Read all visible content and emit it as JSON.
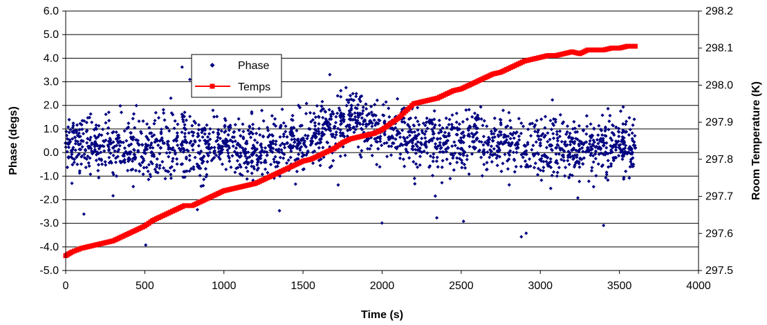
{
  "chart_data": {
    "type": "scatter",
    "title": "",
    "xlabel": "Time (s)",
    "ylabel_left": "Phase (degs)",
    "ylabel_right": "Room Temperature (K)",
    "xlim": [
      0,
      4000
    ],
    "ylim_left": [
      -5,
      6
    ],
    "ylim_right": [
      297.5,
      298.2
    ],
    "x_ticks": [
      "0",
      "500",
      "1000",
      "1500",
      "2000",
      "2500",
      "3000",
      "3500",
      "4000"
    ],
    "y_left_ticks": [
      "-5.0",
      "-4.0",
      "-3.0",
      "-2.0",
      "-1.0",
      "0.0",
      "1.0",
      "2.0",
      "3.0",
      "4.0",
      "5.0",
      "6.0"
    ],
    "y_right_ticks": [
      "297.5",
      "297.6",
      "297.7",
      "297.8",
      "297.9",
      "298.0",
      "298.1",
      "298.2"
    ],
    "grid": "horizontal",
    "legend_position": "upper-left-inside",
    "series": [
      {
        "name": "Phase",
        "type": "scatter",
        "axis": "left",
        "color": "#000080",
        "marker": "diamond",
        "x": [
          0,
          100,
          200,
          300,
          400,
          500,
          600,
          700,
          800,
          900,
          1000,
          1100,
          1200,
          1300,
          1400,
          1500,
          1600,
          1700,
          1800,
          1900,
          2000,
          2100,
          2200,
          2300,
          2400,
          2500,
          2600,
          2700,
          2800,
          2900,
          3000,
          3100,
          3200,
          3300,
          3400,
          3500,
          3600
        ],
        "y": [
          0.4,
          0.5,
          0.3,
          0.2,
          0.3,
          0.1,
          0.2,
          0.5,
          0.3,
          0.2,
          0.4,
          0.3,
          0.1,
          0.2,
          0.4,
          0.6,
          0.8,
          1.1,
          1.4,
          1.2,
          0.9,
          0.8,
          0.6,
          0.5,
          0.4,
          0.5,
          0.6,
          0.5,
          0.4,
          0.3,
          0.3,
          0.2,
          0.1,
          0.2,
          0.3,
          0.2,
          0.2
        ],
        "spread_sd": [
          0.8,
          0.8,
          0.8,
          0.8,
          0.8,
          0.9,
          0.9,
          0.9,
          0.9,
          0.8,
          0.8,
          0.8,
          0.8,
          0.8,
          0.8,
          0.8,
          0.8,
          0.8,
          0.8,
          0.8,
          0.8,
          0.8,
          0.8,
          0.8,
          0.8,
          0.8,
          0.8,
          0.8,
          0.8,
          0.8,
          0.8,
          0.8,
          0.8,
          0.8,
          0.8,
          0.8,
          0.8
        ]
      },
      {
        "name": "Temps",
        "type": "line",
        "axis": "right",
        "color": "#ff0000",
        "marker": "square",
        "x": [
          0,
          40,
          100,
          150,
          200,
          250,
          300,
          350,
          400,
          450,
          500,
          550,
          600,
          650,
          700,
          750,
          800,
          850,
          900,
          950,
          1000,
          1050,
          1100,
          1150,
          1200,
          1250,
          1300,
          1350,
          1400,
          1450,
          1500,
          1550,
          1600,
          1650,
          1700,
          1750,
          1800,
          1850,
          1900,
          1950,
          2000,
          2050,
          2100,
          2150,
          2200,
          2250,
          2300,
          2350,
          2400,
          2450,
          2500,
          2550,
          2600,
          2650,
          2700,
          2750,
          2800,
          2850,
          2900,
          2950,
          3000,
          3050,
          3100,
          3150,
          3200,
          3250,
          3300,
          3350,
          3400,
          3450,
          3500,
          3550,
          3600
        ],
        "y": [
          297.54,
          297.55,
          297.56,
          297.565,
          297.57,
          297.575,
          297.58,
          297.59,
          297.6,
          297.61,
          297.62,
          297.635,
          297.645,
          297.655,
          297.665,
          297.675,
          297.675,
          297.685,
          297.695,
          297.705,
          297.715,
          297.72,
          297.725,
          297.73,
          297.735,
          297.745,
          297.755,
          297.765,
          297.775,
          297.785,
          297.795,
          297.8,
          297.81,
          297.82,
          297.83,
          297.845,
          297.855,
          297.86,
          297.865,
          297.87,
          297.88,
          297.895,
          297.91,
          297.93,
          297.95,
          297.955,
          297.96,
          297.965,
          297.975,
          297.985,
          297.99,
          298.0,
          298.01,
          298.02,
          298.03,
          298.035,
          298.045,
          298.055,
          298.065,
          298.07,
          298.075,
          298.08,
          298.08,
          298.085,
          298.09,
          298.085,
          298.095,
          298.095,
          298.095,
          298.1,
          298.1,
          298.105,
          298.105
        ]
      }
    ]
  }
}
